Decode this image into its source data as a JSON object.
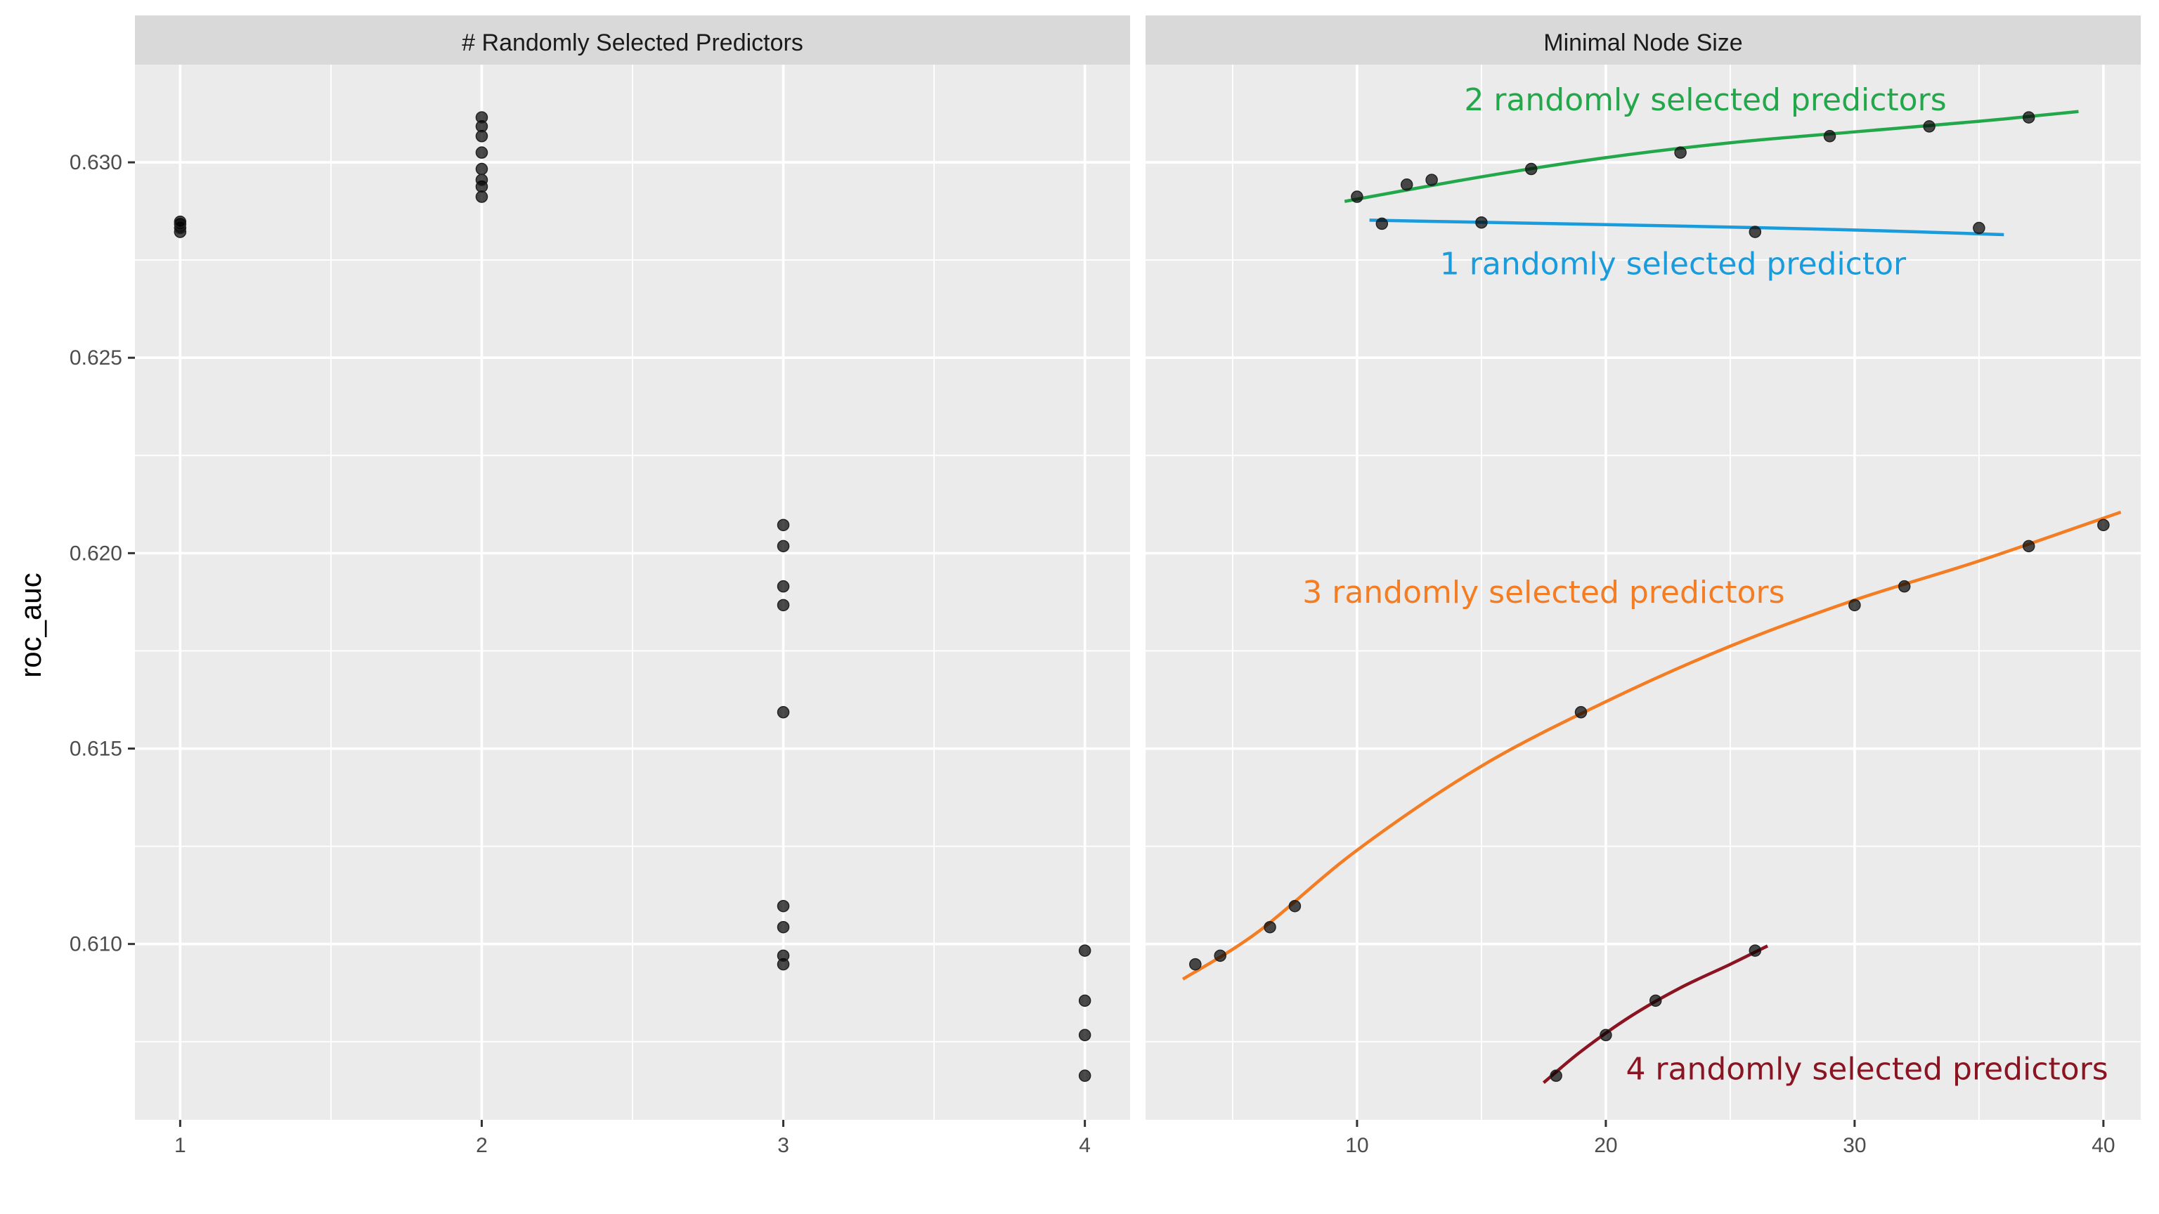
{
  "chart_data": {
    "type": "scatter",
    "y_label": "roc_auc",
    "ylim": [
      0.6055,
      0.6325
    ],
    "y_ticks": [
      "0.610",
      "0.615",
      "0.620",
      "0.625",
      "0.630"
    ],
    "y_tick_values": [
      0.61,
      0.615,
      0.62,
      0.625,
      0.63
    ],
    "grid": true,
    "panels": [
      {
        "strip_label": "# Randomly Selected Predictors",
        "xlim": [
          0.85,
          4.15
        ],
        "x_ticks": [
          "1",
          "2",
          "3",
          "4"
        ],
        "x_tick_values": [
          1,
          2,
          3,
          4
        ],
        "points": [
          {
            "x": 1,
            "y": 0.62822
          },
          {
            "x": 1,
            "y": 0.62832
          },
          {
            "x": 1,
            "y": 0.62842
          },
          {
            "x": 1,
            "y": 0.62848
          },
          {
            "x": 2,
            "y": 0.62912
          },
          {
            "x": 2,
            "y": 0.62938
          },
          {
            "x": 2,
            "y": 0.62955
          },
          {
            "x": 2,
            "y": 0.62983
          },
          {
            "x": 2,
            "y": 0.63025
          },
          {
            "x": 2,
            "y": 0.63067
          },
          {
            "x": 2,
            "y": 0.63092
          },
          {
            "x": 2,
            "y": 0.63115
          },
          {
            "x": 3,
            "y": 0.60948
          },
          {
            "x": 3,
            "y": 0.6097
          },
          {
            "x": 3,
            "y": 0.61043
          },
          {
            "x": 3,
            "y": 0.61097
          },
          {
            "x": 3,
            "y": 0.61593
          },
          {
            "x": 3,
            "y": 0.61867
          },
          {
            "x": 3,
            "y": 0.61915
          },
          {
            "x": 3,
            "y": 0.62018
          },
          {
            "x": 3,
            "y": 0.62072
          },
          {
            "x": 4,
            "y": 0.60663
          },
          {
            "x": 4,
            "y": 0.60767
          },
          {
            "x": 4,
            "y": 0.60855
          },
          {
            "x": 4,
            "y": 0.60983
          }
        ]
      },
      {
        "strip_label": "Minimal Node Size",
        "xlim": [
          1.5,
          41.5
        ],
        "x_ticks": [
          "10",
          "20",
          "30",
          "40"
        ],
        "x_tick_values": [
          10,
          20,
          30,
          40
        ],
        "series": [
          {
            "name": "2 randomly selected predictors",
            "color": "#22a84a",
            "label_pos": {
              "x": 24.0,
              "y": 0.6316
            },
            "points": [
              {
                "x": 10,
                "y": 0.62912
              },
              {
                "x": 12,
                "y": 0.62943
              },
              {
                "x": 13,
                "y": 0.62955
              },
              {
                "x": 17,
                "y": 0.62983
              },
              {
                "x": 23,
                "y": 0.63025
              },
              {
                "x": 29,
                "y": 0.63067
              },
              {
                "x": 33,
                "y": 0.63092
              },
              {
                "x": 37,
                "y": 0.63115
              }
            ],
            "fit": [
              {
                "x": 9.5,
                "y": 0.629
              },
              {
                "x": 15,
                "y": 0.62963
              },
              {
                "x": 20,
                "y": 0.63012
              },
              {
                "x": 25,
                "y": 0.6305
              },
              {
                "x": 30,
                "y": 0.63078
              },
              {
                "x": 35,
                "y": 0.63105
              },
              {
                "x": 39,
                "y": 0.6313
              }
            ]
          },
          {
            "name": "1 randomly selected predictor",
            "color": "#1a9bdb",
            "label_pos": {
              "x": 22.7,
              "y": 0.6274
            },
            "points": [
              {
                "x": 11,
                "y": 0.62843
              },
              {
                "x": 15,
                "y": 0.62846
              },
              {
                "x": 26,
                "y": 0.62822
              },
              {
                "x": 35,
                "y": 0.62832
              }
            ],
            "fit": [
              {
                "x": 10.5,
                "y": 0.62852
              },
              {
                "x": 18,
                "y": 0.62843
              },
              {
                "x": 26,
                "y": 0.62833
              },
              {
                "x": 31,
                "y": 0.62825
              },
              {
                "x": 36,
                "y": 0.62815
              }
            ]
          },
          {
            "name": "3 randomly selected predictors",
            "color": "#f47c22",
            "label_pos": {
              "x": 17.5,
              "y": 0.619
            },
            "points": [
              {
                "x": 3.5,
                "y": 0.60948
              },
              {
                "x": 4.5,
                "y": 0.6097
              },
              {
                "x": 6.5,
                "y": 0.61043
              },
              {
                "x": 7.5,
                "y": 0.61097
              },
              {
                "x": 19,
                "y": 0.61593
              },
              {
                "x": 30,
                "y": 0.61867
              },
              {
                "x": 32,
                "y": 0.61915
              },
              {
                "x": 37,
                "y": 0.62018
              },
              {
                "x": 40,
                "y": 0.62072
              }
            ],
            "fit": [
              {
                "x": 3.0,
                "y": 0.6091
              },
              {
                "x": 6,
                "y": 0.6103
              },
              {
                "x": 10,
                "y": 0.6124
              },
              {
                "x": 15,
                "y": 0.61455
              },
              {
                "x": 20,
                "y": 0.6162
              },
              {
                "x": 25,
                "y": 0.61762
              },
              {
                "x": 30,
                "y": 0.6188
              },
              {
                "x": 35,
                "y": 0.6198
              },
              {
                "x": 40.7,
                "y": 0.62105
              }
            ]
          },
          {
            "name": "4 randomly selected predictors",
            "color": "#8b1422",
            "label_pos": {
              "x": 30.5,
              "y": 0.6068
            },
            "points": [
              {
                "x": 18,
                "y": 0.60663
              },
              {
                "x": 20,
                "y": 0.60767
              },
              {
                "x": 22,
                "y": 0.60855
              },
              {
                "x": 26,
                "y": 0.60983
              }
            ],
            "fit": [
              {
                "x": 17.5,
                "y": 0.60645
              },
              {
                "x": 19,
                "y": 0.60725
              },
              {
                "x": 21,
                "y": 0.60815
              },
              {
                "x": 23,
                "y": 0.60888
              },
              {
                "x": 25,
                "y": 0.60948
              },
              {
                "x": 26.5,
                "y": 0.60995
              }
            ]
          }
        ]
      }
    ]
  }
}
